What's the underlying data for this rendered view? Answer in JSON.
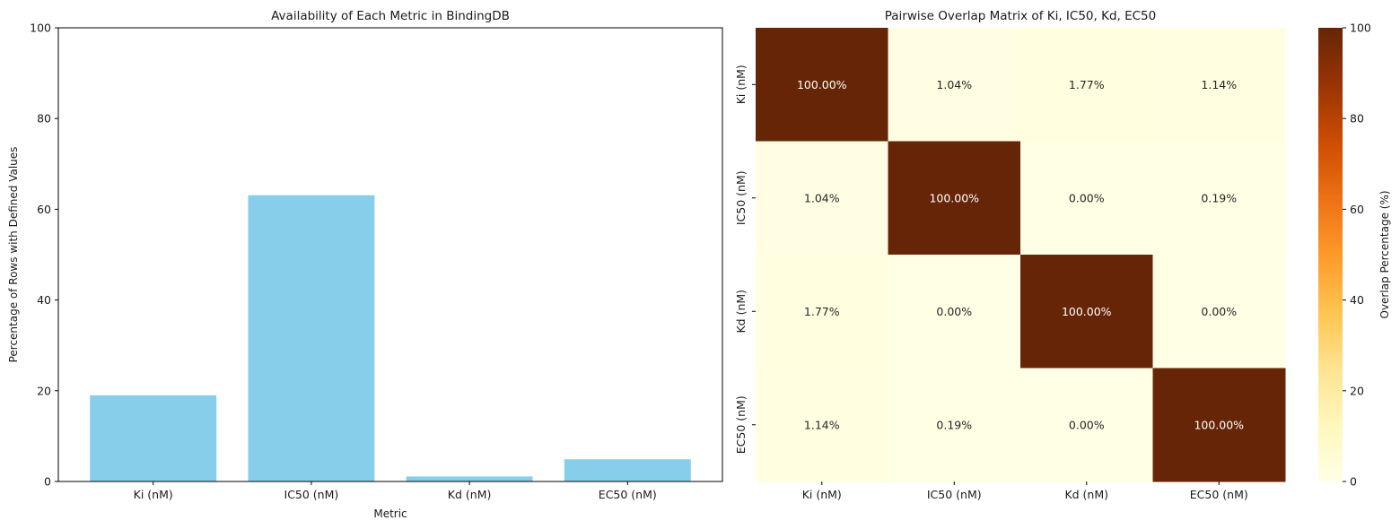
{
  "chart_data": [
    {
      "type": "bar",
      "title": "Availability of Each Metric in BindingDB",
      "xlabel": "Metric",
      "ylabel": "Percentage of Rows with Defined Values",
      "categories": [
        "Ki (nM)",
        "IC50 (nM)",
        "Kd (nM)",
        "EC50 (nM)"
      ],
      "values": [
        19.0,
        63.1,
        1.1,
        4.9
      ],
      "ylim": [
        0,
        100
      ],
      "yticks": [
        0,
        20,
        40,
        60,
        80,
        100
      ],
      "grid": false,
      "bar_color": "#87ceeb"
    },
    {
      "type": "heatmap",
      "title": "Pairwise Overlap Matrix of Ki, IC50, Kd, EC50",
      "x_categories": [
        "Ki (nM)",
        "IC50 (nM)",
        "Kd (nM)",
        "EC50 (nM)"
      ],
      "y_categories": [
        "Ki (nM)",
        "IC50 (nM)",
        "Kd (nM)",
        "EC50 (nM)"
      ],
      "values": [
        [
          100.0,
          1.04,
          1.77,
          1.14
        ],
        [
          1.04,
          100.0,
          0.0,
          0.19
        ],
        [
          1.77,
          0.0,
          100.0,
          0.0
        ],
        [
          1.14,
          0.19,
          0.0,
          100.0
        ]
      ],
      "cell_labels": [
        [
          "100.00%",
          "1.04%",
          "1.77%",
          "1.14%"
        ],
        [
          "1.04%",
          "100.00%",
          "0.00%",
          "0.19%"
        ],
        [
          "1.77%",
          "0.00%",
          "100.00%",
          "0.00%"
        ],
        [
          "1.14%",
          "0.19%",
          "0.00%",
          "100.00%"
        ]
      ],
      "colormap": "YlOrBr",
      "vmin": 0,
      "vmax": 100,
      "colorbar_label": "Overlap Percentage (%)",
      "colorbar_ticks": [
        0,
        20,
        40,
        60,
        80,
        100
      ]
    }
  ]
}
